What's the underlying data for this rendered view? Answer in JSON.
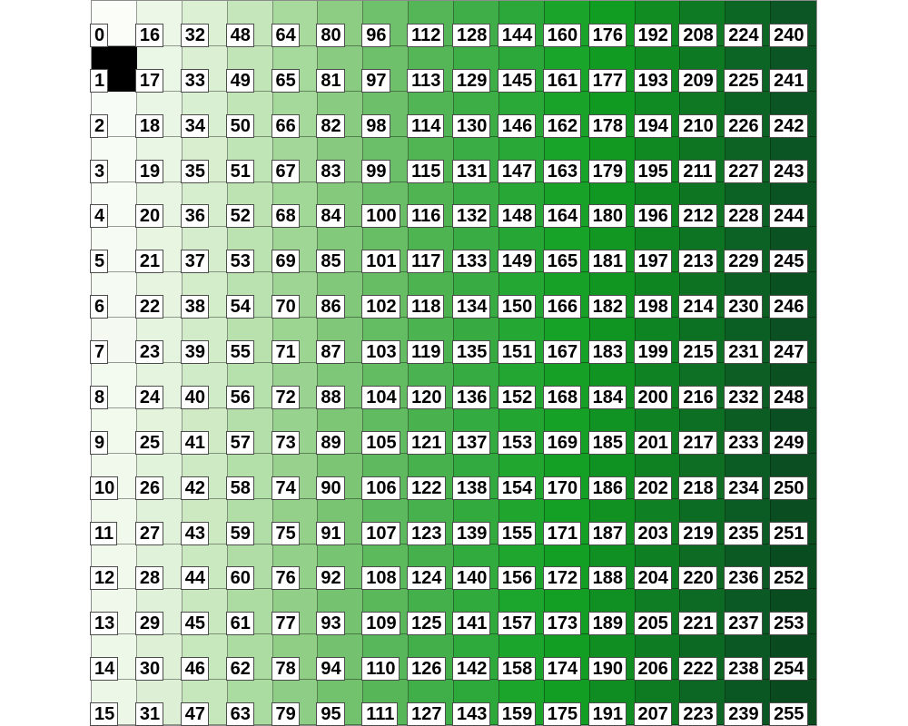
{
  "chart_data": {
    "type": "heatmap",
    "grid": {
      "rows": 16,
      "columns": 16,
      "order": "column-major-top-to-bottom"
    },
    "value_range": [
      0,
      255
    ],
    "values": [
      0,
      1,
      2,
      3,
      4,
      5,
      6,
      7,
      8,
      9,
      10,
      11,
      12,
      13,
      14,
      15,
      16,
      17,
      18,
      19,
      20,
      21,
      22,
      23,
      24,
      25,
      26,
      27,
      28,
      29,
      30,
      31,
      32,
      33,
      34,
      35,
      36,
      37,
      38,
      39,
      40,
      41,
      42,
      43,
      44,
      45,
      46,
      47,
      48,
      49,
      50,
      51,
      52,
      53,
      54,
      55,
      56,
      57,
      58,
      59,
      60,
      61,
      62,
      63,
      64,
      65,
      66,
      67,
      68,
      69,
      70,
      71,
      72,
      73,
      74,
      75,
      76,
      77,
      78,
      79,
      80,
      81,
      82,
      83,
      84,
      85,
      86,
      87,
      88,
      89,
      90,
      91,
      92,
      93,
      94,
      95,
      96,
      97,
      98,
      99,
      100,
      101,
      102,
      103,
      104,
      105,
      106,
      107,
      108,
      109,
      110,
      111,
      112,
      113,
      114,
      115,
      116,
      117,
      118,
      119,
      120,
      121,
      122,
      123,
      124,
      125,
      126,
      127,
      128,
      129,
      130,
      131,
      132,
      133,
      134,
      135,
      136,
      137,
      138,
      139,
      140,
      141,
      142,
      143,
      144,
      145,
      146,
      147,
      148,
      149,
      150,
      151,
      152,
      153,
      154,
      155,
      156,
      157,
      158,
      159,
      160,
      161,
      162,
      163,
      164,
      165,
      166,
      167,
      168,
      169,
      170,
      171,
      172,
      173,
      174,
      175,
      176,
      177,
      178,
      179,
      180,
      181,
      182,
      183,
      184,
      185,
      186,
      187,
      188,
      189,
      190,
      191,
      192,
      193,
      194,
      195,
      196,
      197,
      198,
      199,
      200,
      201,
      202,
      203,
      204,
      205,
      206,
      207,
      208,
      209,
      210,
      211,
      212,
      213,
      214,
      215,
      216,
      217,
      218,
      219,
      220,
      221,
      222,
      223,
      224,
      225,
      226,
      227,
      228,
      229,
      230,
      231,
      232,
      233,
      234,
      235,
      236,
      237,
      238,
      239,
      240,
      241,
      242,
      243,
      244,
      245,
      246,
      247,
      248,
      249,
      250,
      251,
      252,
      253,
      254,
      255
    ],
    "colormap_stops": [
      {
        "value": 0,
        "color": "#fafdf8"
      },
      {
        "value": 16,
        "color": "#ecf7e7"
      },
      {
        "value": 32,
        "color": "#dcf0d4"
      },
      {
        "value": 48,
        "color": "#c4e6ba"
      },
      {
        "value": 64,
        "color": "#a8da9e"
      },
      {
        "value": 80,
        "color": "#8ccc83"
      },
      {
        "value": 96,
        "color": "#70c16c"
      },
      {
        "value": 112,
        "color": "#55b657"
      },
      {
        "value": 128,
        "color": "#3fae48"
      },
      {
        "value": 144,
        "color": "#2ca83a"
      },
      {
        "value": 160,
        "color": "#1aa52a"
      },
      {
        "value": 176,
        "color": "#119c22"
      },
      {
        "value": 192,
        "color": "#108c22"
      },
      {
        "value": 208,
        "color": "#0e7a23"
      },
      {
        "value": 224,
        "color": "#0c6624"
      },
      {
        "value": 240,
        "color": "#0b5624"
      },
      {
        "value": 255,
        "color": "#094a1f"
      }
    ],
    "special_values": [
      {
        "value": 1,
        "color": "#000000"
      }
    ],
    "cell_label_style": {
      "background": "#ffffff",
      "border_color": "#000000",
      "text_color": "#000000"
    },
    "mesh_line_color": "#000000",
    "background_color": "#ffffff",
    "legend": "none",
    "axes": "none"
  }
}
